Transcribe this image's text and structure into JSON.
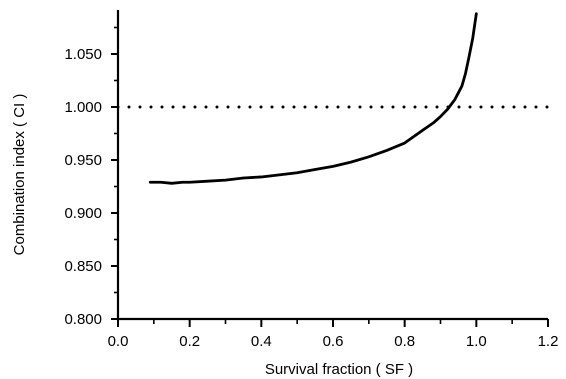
{
  "chart_data": {
    "type": "line",
    "title": "",
    "xlabel": "Survival fraction  ( SF  )",
    "ylabel": "Combination index ( CI )",
    "xlim": [
      0.0,
      1.2
    ],
    "ylim": [
      0.8,
      1.09
    ],
    "x_ticks": [
      0.0,
      0.2,
      0.4,
      0.6,
      0.8,
      1.0,
      1.2
    ],
    "x_tick_labels": [
      "0.0",
      "0.2",
      "0.4",
      "0.6",
      "0.8",
      "1.0",
      "1.2"
    ],
    "y_ticks": [
      0.8,
      0.85,
      0.9,
      0.95,
      1.0,
      1.05
    ],
    "y_tick_labels": [
      "0.800",
      "0.850",
      "0.900",
      "0.950",
      "1.000",
      "1.050"
    ],
    "grid": false,
    "legend": "none",
    "reference_line": {
      "y": 1.0,
      "style": "dotted"
    },
    "series": [
      {
        "x": [
          0.09,
          0.12,
          0.15,
          0.18,
          0.2,
          0.25,
          0.3,
          0.35,
          0.4,
          0.45,
          0.5,
          0.55,
          0.6,
          0.65,
          0.7,
          0.75,
          0.8,
          0.85,
          0.88,
          0.9,
          0.92,
          0.94,
          0.96,
          0.97,
          0.98,
          0.99,
          1.0
        ],
        "y": [
          0.929,
          0.929,
          0.928,
          0.929,
          0.929,
          0.93,
          0.931,
          0.933,
          0.934,
          0.936,
          0.938,
          0.941,
          0.944,
          0.948,
          0.953,
          0.959,
          0.966,
          0.978,
          0.985,
          0.991,
          0.998,
          1.007,
          1.02,
          1.032,
          1.048,
          1.065,
          1.088
        ]
      }
    ]
  }
}
